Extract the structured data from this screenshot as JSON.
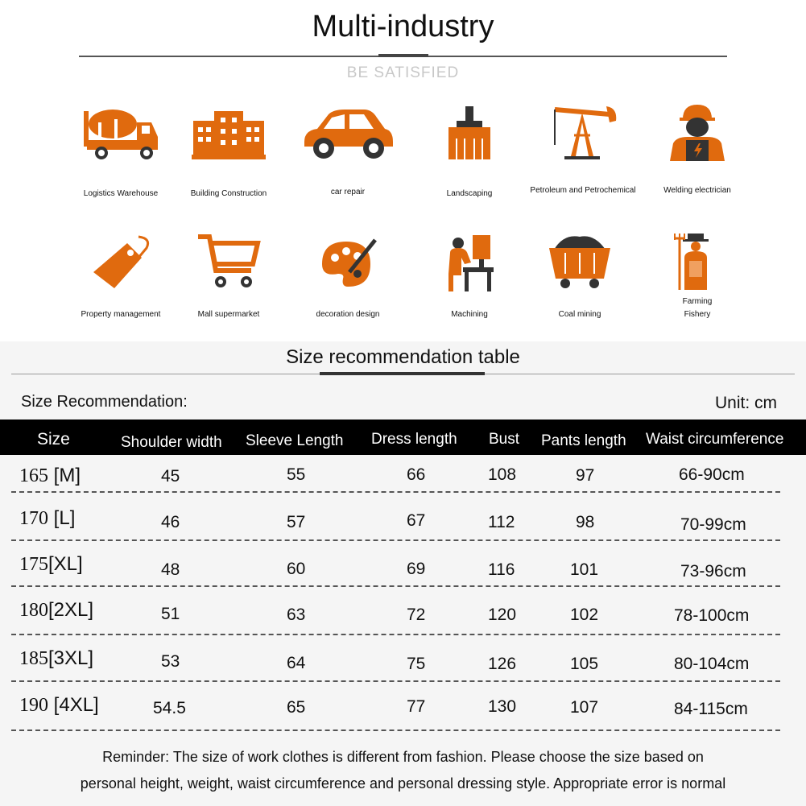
{
  "header": {
    "title": "Multi-industry",
    "subtitle": "BE SATISFIED"
  },
  "colors": {
    "accent": "#e06a0e",
    "header_bar": "#000000",
    "section_bg": "#f5f5f5"
  },
  "industries": [
    {
      "label": "Logistics Warehouse",
      "icon": "cement-truck-icon"
    },
    {
      "label": "Building Construction",
      "icon": "building-icon"
    },
    {
      "label": "car repair",
      "icon": "car-icon"
    },
    {
      "label": "Landscaping",
      "icon": "brush-icon"
    },
    {
      "label": "Petroleum and Petrochemical",
      "icon": "oil-pump-icon"
    },
    {
      "label": "Welding electrician",
      "icon": "worker-icon"
    },
    {
      "label": "Property management",
      "icon": "tag-icon"
    },
    {
      "label": "Mall supermarket",
      "icon": "shopping-cart-icon"
    },
    {
      "label": "decoration design",
      "icon": "paint-palette-icon"
    },
    {
      "label": "Machining",
      "icon": "machinist-icon"
    },
    {
      "label": "Coal mining",
      "icon": "mine-cart-icon"
    },
    {
      "label": "Farming",
      "label2": "Fishery",
      "icon": "farmer-icon"
    }
  ],
  "size_table": {
    "title": "Size recommendation table",
    "label": "Size Recommendation:",
    "unit": "Unit: cm",
    "columns": [
      "Size",
      "Shoulder width",
      "Sleeve Length",
      "Dress length",
      "Bust",
      "Pants length",
      "Waist circumference"
    ],
    "rows": [
      {
        "height": "165",
        "size": "[M]",
        "values": [
          "45",
          "55",
          "66",
          "108",
          "97",
          "66-90cm"
        ]
      },
      {
        "height": "170",
        "size": "[L]",
        "values": [
          "46",
          "57",
          "67",
          "112",
          "98",
          "70-99cm"
        ]
      },
      {
        "height": "175",
        "size": "[XL]",
        "values": [
          "48",
          "60",
          "69",
          "116",
          "101",
          "73-96cm"
        ]
      },
      {
        "height": "180",
        "size": "[2XL]",
        "values": [
          "51",
          "63",
          "72",
          "120",
          "102",
          "78-100cm"
        ]
      },
      {
        "height": "185",
        "size": "[3XL]",
        "values": [
          "53",
          "64",
          "75",
          "126",
          "105",
          "80-104cm"
        ]
      },
      {
        "height": "190",
        "size": "[4XL]",
        "values": [
          "54.5",
          "65",
          "77",
          "130",
          "107",
          "84-115cm"
        ]
      }
    ]
  },
  "reminder": {
    "line1": "Reminder: The size of work clothes is different from fashion. Please choose the size based on",
    "line2": "personal height, weight, waist circumference and personal dressing style. Appropriate error is normal"
  }
}
